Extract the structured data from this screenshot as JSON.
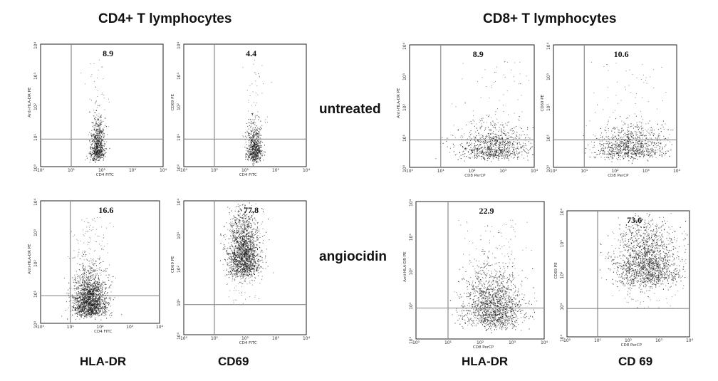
{
  "headers": {
    "cd4": "CD4+ T lymphocytes",
    "cd8": "CD8+ T lymphocytes"
  },
  "row_labels": {
    "untreated": "untreated",
    "angiocidin": "angiocidin"
  },
  "column_labels": {
    "cd4_hla": "HLA-DR",
    "cd4_cd69": "CD69",
    "cd8_hla": "HLA-DR",
    "cd8_cd69": "CD 69"
  },
  "chart_data": [
    {
      "type": "scatter",
      "group": "CD4+ T lymphocytes",
      "condition": "untreated",
      "xlabel": "CD4 FITC",
      "ylabel": "Anti-HLA-DR PE",
      "ticks": [
        "10⁰",
        "10¹",
        "10²",
        "10³",
        "10⁴"
      ],
      "xlim": [
        0,
        4
      ],
      "ylim": [
        0,
        4
      ],
      "gate": {
        "x": 1.0,
        "y": 0.9
      },
      "annotation": "8.9",
      "percent_upper_right": 8.9,
      "population": {
        "cx": 1.85,
        "cy": 0.4,
        "sx": 0.12,
        "sy": 0.55,
        "n": 700
      }
    },
    {
      "type": "scatter",
      "group": "CD4+ T lymphocytes",
      "condition": "untreated",
      "xlabel": "CD4 FITC",
      "ylabel": "CD69 PE",
      "ticks": [
        "10⁰",
        "10¹",
        "10²",
        "10³",
        "10⁴"
      ],
      "xlim": [
        0,
        4
      ],
      "ylim": [
        0,
        4
      ],
      "gate": {
        "x": 1.0,
        "y": 0.9
      },
      "annotation": "4.4",
      "percent_upper_right": 4.4,
      "population": {
        "cx": 2.3,
        "cy": 0.35,
        "sx": 0.12,
        "sy": 0.5,
        "n": 650
      }
    },
    {
      "type": "scatter",
      "group": "CD8+ T lymphocytes",
      "condition": "untreated",
      "xlabel": "CD8 PerCP",
      "ylabel": "Anti-HLA-DR PE",
      "ticks": [
        "10⁰",
        "10¹",
        "10²",
        "10³",
        "10⁴"
      ],
      "xlim": [
        0,
        4
      ],
      "ylim": [
        0,
        4
      ],
      "gate": {
        "x": 1.0,
        "y": 0.9
      },
      "annotation": "8.9",
      "percent_upper_right": 8.9,
      "population": {
        "cx": 2.7,
        "cy": 0.45,
        "sx": 0.55,
        "sy": 0.45,
        "n": 900
      }
    },
    {
      "type": "scatter",
      "group": "CD8+ T lymphocytes",
      "condition": "untreated",
      "xlabel": "CD8 PerCP",
      "ylabel": "CD69 PE",
      "ticks": [
        "10⁰",
        "10¹",
        "10²",
        "10³",
        "10⁴"
      ],
      "xlim": [
        0,
        4
      ],
      "ylim": [
        0,
        4
      ],
      "gate": {
        "x": 1.0,
        "y": 0.9
      },
      "annotation": "10.6",
      "percent_upper_right": 10.6,
      "population": {
        "cx": 2.5,
        "cy": 0.45,
        "sx": 0.55,
        "sy": 0.45,
        "n": 900
      }
    },
    {
      "type": "scatter",
      "group": "CD4+ T lymphocytes",
      "condition": "angiocidin",
      "xlabel": "CD4 FITC",
      "ylabel": "Anti-HLA-DR PE",
      "ticks": [
        "10⁰",
        "10¹",
        "10²",
        "10³",
        "10⁴"
      ],
      "xlim": [
        0,
        4
      ],
      "ylim": [
        0,
        4
      ],
      "gate": {
        "x": 1.0,
        "y": 0.9
      },
      "annotation": "16.6",
      "percent_upper_right": 16.6,
      "population": {
        "cx": 1.65,
        "cy": 0.45,
        "sx": 0.28,
        "sy": 0.6,
        "n": 1800
      }
    },
    {
      "type": "scatter",
      "group": "CD4+ T lymphocytes",
      "condition": "angiocidin",
      "xlabel": "CD4 FITC",
      "ylabel": "CD69 PE",
      "ticks": [
        "10⁰",
        "10¹",
        "10²",
        "10³",
        "10⁴"
      ],
      "xlim": [
        0,
        4
      ],
      "ylim": [
        0,
        4
      ],
      "gate": {
        "x": 1.0,
        "y": 0.9
      },
      "annotation": "77.8",
      "percent_upper_right": 77.8,
      "population": {
        "cx": 1.95,
        "cy": 2.0,
        "sx": 0.25,
        "sy": 0.85,
        "n": 1800
      }
    },
    {
      "type": "scatter",
      "group": "CD8+ T lymphocytes",
      "condition": "angiocidin",
      "xlabel": "CD8 PerCP",
      "ylabel": "Anti-HLA-DR PE",
      "ticks": [
        "10⁰",
        "10¹",
        "10²",
        "10³",
        "10⁴"
      ],
      "xlim": [
        0,
        4
      ],
      "ylim": [
        0,
        4
      ],
      "gate": {
        "x": 1.0,
        "y": 0.9
      },
      "annotation": "22.9",
      "percent_upper_right": 22.9,
      "population": {
        "cx": 2.4,
        "cy": 0.6,
        "sx": 0.45,
        "sy": 0.7,
        "n": 1500
      }
    },
    {
      "type": "scatter",
      "group": "CD8+ T lymphocytes",
      "condition": "angiocidin",
      "xlabel": "CD8 PerCP",
      "ylabel": "CD69 PE",
      "ticks": [
        "10⁰",
        "10¹",
        "10²",
        "10³",
        "10⁴"
      ],
      "xlim": [
        0,
        4
      ],
      "ylim": [
        0,
        4
      ],
      "gate": {
        "x": 1.0,
        "y": 0.9
      },
      "annotation": "73.6",
      "percent_upper_right": 73.6,
      "population": {
        "cx": 2.6,
        "cy": 1.9,
        "sx": 0.5,
        "sy": 0.9,
        "n": 1700
      }
    }
  ]
}
